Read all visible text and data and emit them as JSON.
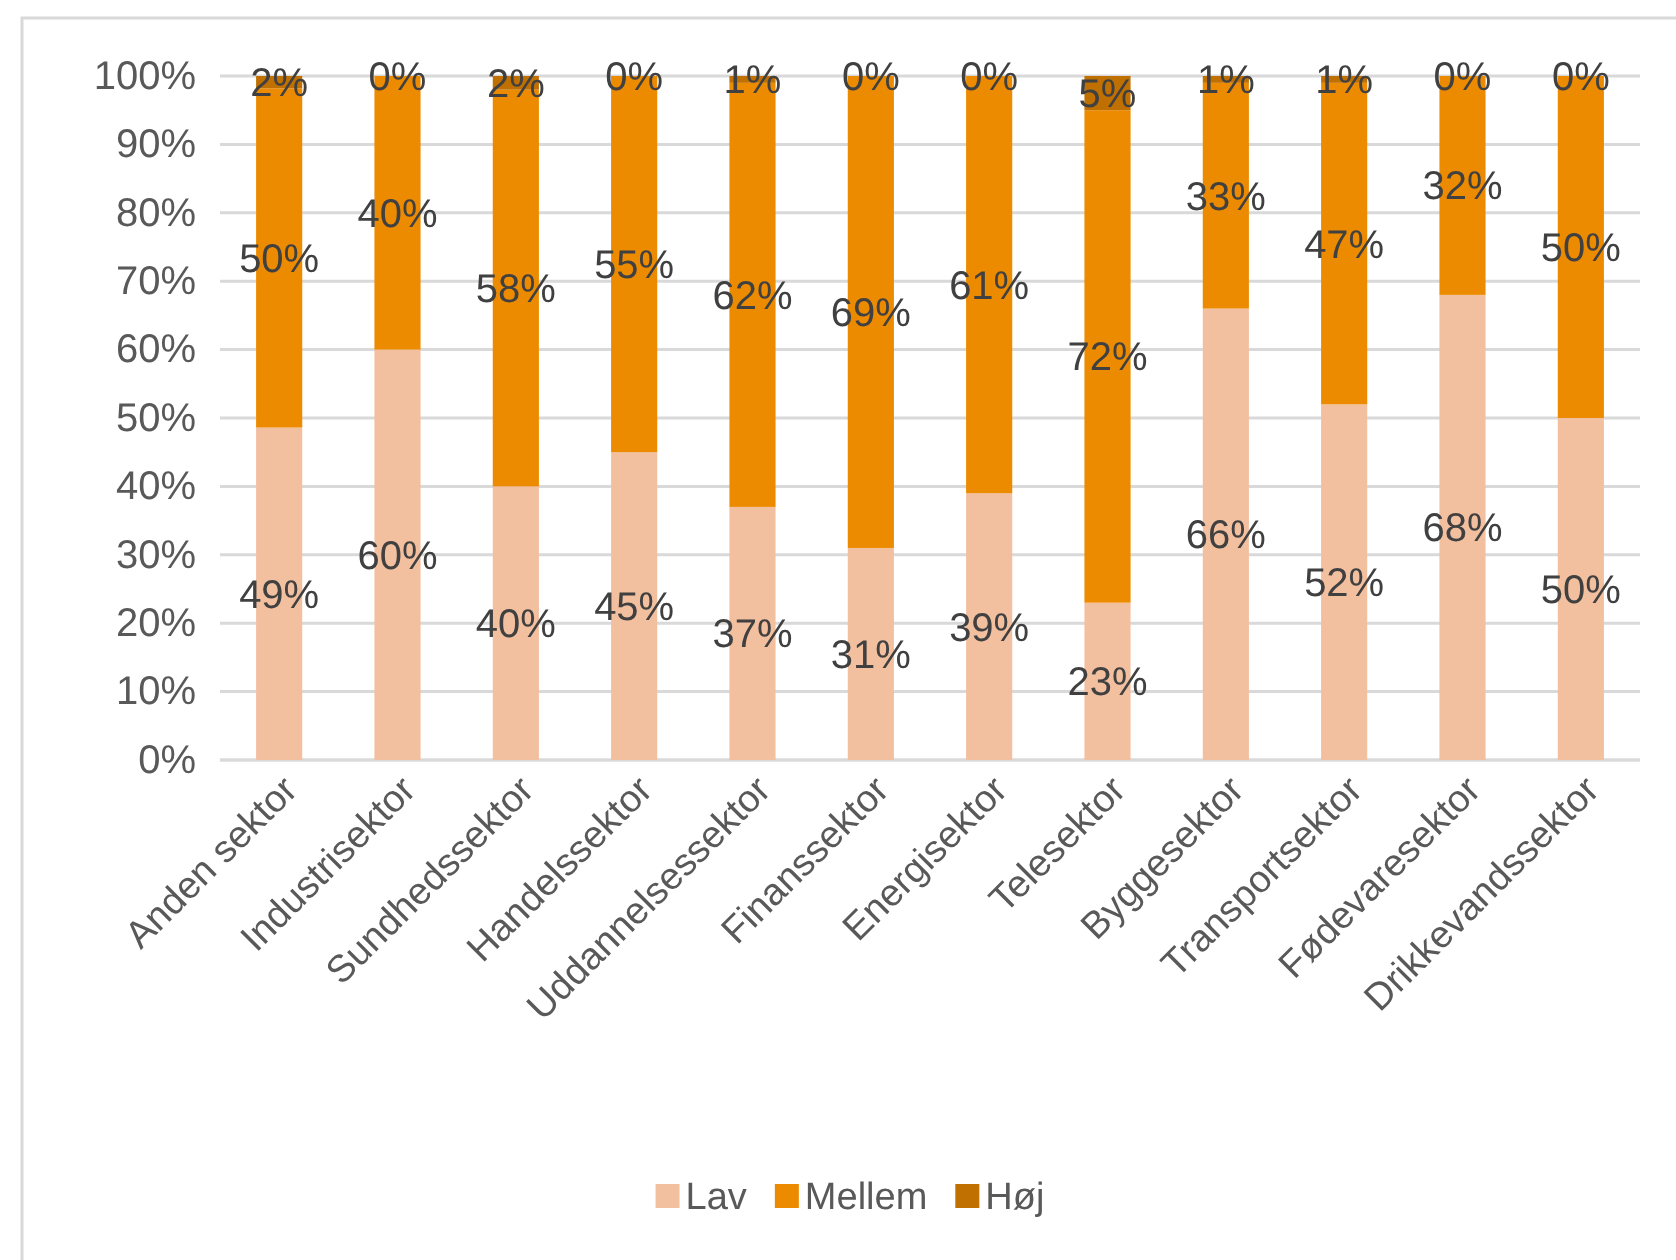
{
  "chart_data": {
    "type": "bar",
    "stacked": true,
    "categories": [
      "Anden sektor",
      "Industrisektor",
      "Sundhedssektor",
      "Handelssektor",
      "Uddannelsessektor",
      "Finanssektor",
      "Energisektor",
      "Telesektor",
      "Byggesektor",
      "Transportsektor",
      "Fødevaresektor",
      "Drikkevandssektor"
    ],
    "series": [
      {
        "name": "Lav",
        "color": "#f2bf9f",
        "values": [
          48.6,
          60,
          40,
          45,
          37,
          31,
          39,
          23,
          66,
          52,
          68,
          50
        ],
        "value_labels": [
          "49%",
          "60%",
          "40%",
          "45%",
          "37%",
          "31%",
          "39%",
          "23%",
          "66%",
          "52%",
          "68%",
          "50%"
        ]
      },
      {
        "name": "Mellem",
        "color": "#ed8b00",
        "values": [
          49.6,
          40,
          58,
          55,
          62,
          69,
          61,
          72,
          33,
          47,
          32,
          50
        ],
        "value_labels": [
          "50%",
          "40%",
          "58%",
          "55%",
          "62%",
          "69%",
          "61%",
          "72%",
          "33%",
          "47%",
          "32%",
          "50%"
        ]
      },
      {
        "name": "Høj",
        "color": "#c07000",
        "values": [
          1.8,
          0,
          2,
          0,
          1,
          0,
          0,
          5,
          1,
          1,
          0,
          0
        ],
        "value_labels": [
          "2%",
          "0%",
          "2%",
          "0%",
          "1%",
          "0%",
          "0%",
          "5%",
          "1%",
          "1%",
          "0%",
          "0%"
        ]
      }
    ],
    "ylim": [
      0,
      100
    ],
    "yticks": [
      {
        "value": 0,
        "label": "0%"
      },
      {
        "value": 10,
        "label": "10%"
      },
      {
        "value": 20,
        "label": "20%"
      },
      {
        "value": 30,
        "label": "30%"
      },
      {
        "value": 40,
        "label": "40%"
      },
      {
        "value": 50,
        "label": "50%"
      },
      {
        "value": 60,
        "label": "60%"
      },
      {
        "value": 70,
        "label": "70%"
      },
      {
        "value": 80,
        "label": "80%"
      },
      {
        "value": 90,
        "label": "90%"
      },
      {
        "value": 100,
        "label": "100%"
      }
    ],
    "grid": "y",
    "legend": "bottom"
  }
}
